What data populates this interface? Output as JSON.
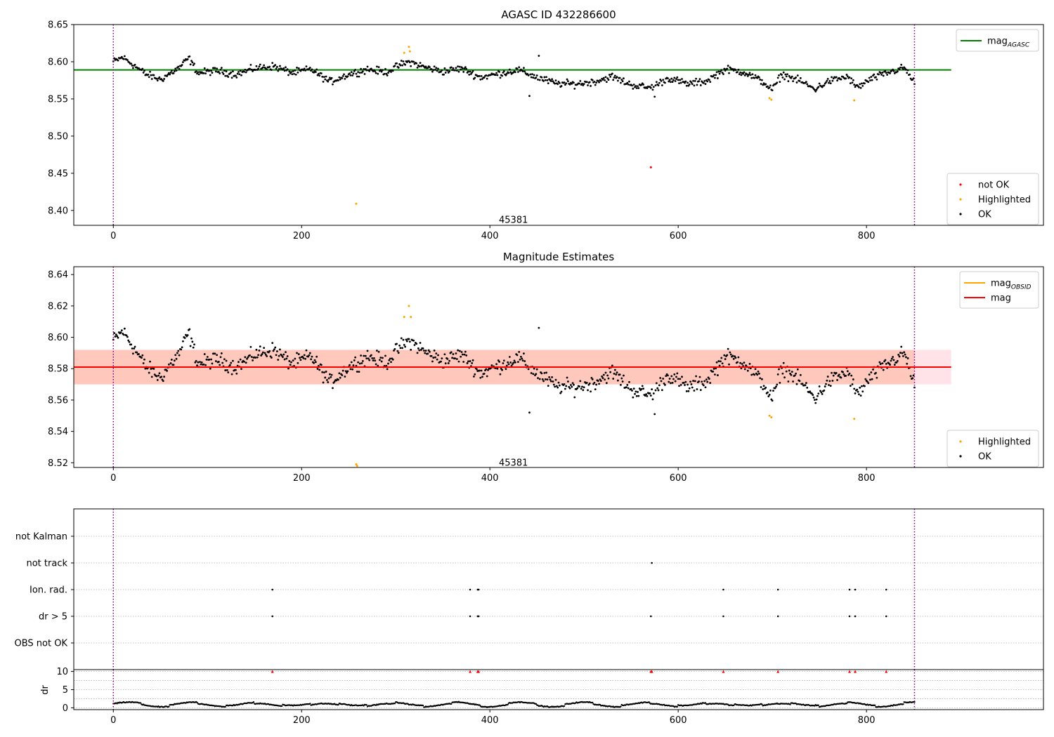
{
  "figure": {
    "background": "#ffffff"
  },
  "chart_data": [
    {
      "type": "scatter",
      "title": "AGASC ID 432286600",
      "xlim": [
        -42,
        988
      ],
      "ylim": [
        8.38,
        8.65
      ],
      "x_ticks": [
        0,
        200,
        400,
        600,
        800
      ],
      "x_tick_labels": [
        "0",
        "200",
        "400",
        "600",
        "800"
      ],
      "y_ticks": [
        8.4,
        8.45,
        8.5,
        8.55,
        8.6,
        8.65
      ],
      "y_tick_labels": [
        "8.40",
        "8.45",
        "8.50",
        "8.55",
        "8.60",
        "8.65"
      ],
      "grid": false,
      "obsid_boundaries": [
        0,
        851
      ],
      "obsid_label": {
        "text": "45381",
        "x": 425,
        "y": 8.387
      },
      "reference_lines": [
        {
          "name": "mag_AGASC",
          "y": 8.589,
          "x_range": [
            -42,
            890
          ],
          "color": "#008000"
        }
      ],
      "series": [
        {
          "name": "not OK",
          "color": "#ff0000",
          "points": [
            [
              571,
              8.458
            ]
          ]
        },
        {
          "name": "Highlighted",
          "color": "#ffa500",
          "points": [
            [
              258,
              8.409
            ],
            [
              309,
              8.612
            ],
            [
              314,
              8.62
            ],
            [
              315,
              8.614
            ],
            [
              697,
              8.551
            ],
            [
              699,
              8.549
            ],
            [
              787,
              8.548
            ]
          ]
        },
        {
          "name": "OK",
          "color": "#000000",
          "n_points": 851,
          "mean": 8.583,
          "segments": [
            [
              0,
              8.6
            ],
            [
              10,
              8.606
            ],
            [
              20,
              8.597
            ],
            [
              35,
              8.583
            ],
            [
              50,
              8.576
            ],
            [
              70,
              8.592
            ],
            [
              80,
              8.605
            ],
            [
              90,
              8.585
            ],
            [
              110,
              8.588
            ],
            [
              130,
              8.583
            ],
            [
              150,
              8.591
            ],
            [
              170,
              8.594
            ],
            [
              190,
              8.585
            ],
            [
              210,
              8.59
            ],
            [
              230,
              8.573
            ],
            [
              250,
              8.583
            ],
            [
              270,
              8.59
            ],
            [
              290,
              8.586
            ],
            [
              305,
              8.596
            ],
            [
              315,
              8.6
            ],
            [
              330,
              8.593
            ],
            [
              350,
              8.587
            ],
            [
              370,
              8.591
            ],
            [
              390,
              8.579
            ],
            [
              410,
              8.584
            ],
            [
              430,
              8.589
            ],
            [
              450,
              8.579
            ],
            [
              470,
              8.571
            ],
            [
              490,
              8.57
            ],
            [
              510,
              8.573
            ],
            [
              530,
              8.58
            ],
            [
              550,
              8.569
            ],
            [
              570,
              8.565
            ],
            [
              590,
              8.578
            ],
            [
              610,
              8.57
            ],
            [
              630,
              8.574
            ],
            [
              650,
              8.59
            ],
            [
              670,
              8.586
            ],
            [
              690,
              8.573
            ],
            [
              700,
              8.562
            ],
            [
              710,
              8.583
            ],
            [
              730,
              8.574
            ],
            [
              745,
              8.563
            ],
            [
              760,
              8.574
            ],
            [
              780,
              8.58
            ],
            [
              790,
              8.565
            ],
            [
              805,
              8.577
            ],
            [
              820,
              8.584
            ],
            [
              840,
              8.592
            ],
            [
              851,
              8.572
            ]
          ]
        }
      ],
      "legends": [
        {
          "location": "upper-right",
          "entries": [
            {
              "label": "mag",
              "subscript": "AGASC",
              "kind": "line",
              "color": "#008000"
            }
          ]
        },
        {
          "location": "lower-right",
          "entries": [
            {
              "label": "not OK",
              "kind": "marker",
              "color": "#ff0000"
            },
            {
              "label": "Highlighted",
              "kind": "marker",
              "color": "#ffa500"
            },
            {
              "label": "OK",
              "kind": "marker",
              "color": "#000000"
            }
          ]
        }
      ]
    },
    {
      "type": "scatter",
      "title": "Magnitude Estimates",
      "xlim": [
        -42,
        988
      ],
      "ylim": [
        8.517,
        8.645
      ],
      "x_ticks": [
        0,
        200,
        400,
        600,
        800
      ],
      "x_tick_labels": [
        "0",
        "200",
        "400",
        "600",
        "800"
      ],
      "y_ticks": [
        8.52,
        8.54,
        8.56,
        8.58,
        8.6,
        8.62,
        8.64
      ],
      "y_tick_labels": [
        "8.52",
        "8.54",
        "8.56",
        "8.58",
        "8.60",
        "8.62",
        "8.64"
      ],
      "grid": false,
      "obsid_boundaries": [
        0,
        851
      ],
      "obsid_label": {
        "text": "45381",
        "x": 425,
        "y": 8.52
      },
      "bands": [
        {
          "name": "mag range",
          "y_range": [
            8.57,
            8.592
          ],
          "x_range": [
            -42,
            890
          ],
          "color": "#ffc0cb",
          "opacity": 0.45
        },
        {
          "name": "mag_OBSID range",
          "y_range": [
            8.57,
            8.592
          ],
          "x_range": [
            -42,
            851
          ],
          "color": "#ffa07a",
          "opacity": 0.4
        }
      ],
      "reference_lines": [
        {
          "name": "mag_OBSID",
          "y": 8.581,
          "x_range": [
            -42,
            851
          ],
          "color": "#ffa500"
        },
        {
          "name": "mag",
          "y": 8.581,
          "x_range": [
            -42,
            890
          ],
          "color": "#ff0000"
        }
      ],
      "series": [
        {
          "name": "Highlighted",
          "color": "#ffa500",
          "points": [
            [
              258,
              8.519
            ],
            [
              259,
              8.518
            ],
            [
              309,
              8.613
            ],
            [
              314,
              8.62
            ],
            [
              316,
              8.613
            ],
            [
              697,
              8.55
            ],
            [
              699,
              8.549
            ],
            [
              787,
              8.548
            ]
          ]
        },
        {
          "name": "OK",
          "color": "#000000",
          "n_points": 851,
          "mean": 8.583
        }
      ],
      "legends": [
        {
          "location": "upper-right",
          "entries": [
            {
              "label": "mag",
              "subscript": "OBSID",
              "kind": "line",
              "color": "#ffa500"
            },
            {
              "label": "mag",
              "kind": "line",
              "color": "#ff0000"
            }
          ]
        },
        {
          "location": "lower-right",
          "entries": [
            {
              "label": "Highlighted",
              "kind": "marker",
              "color": "#ffa500"
            },
            {
              "label": "OK",
              "kind": "marker",
              "color": "#000000"
            }
          ]
        }
      ]
    },
    {
      "type": "scatter",
      "title": "",
      "xlim": [
        -42,
        988
      ],
      "y_categories": [
        "not Kalman",
        "not track",
        "Ion. rad.",
        "dr > 5",
        "OBS not OK"
      ],
      "grid": true,
      "obsid_boundaries": [
        0,
        851
      ],
      "flags": {
        "not Kalman": [],
        "not track": [
          572
        ],
        "Ion. rad.": [
          169,
          379,
          387,
          388,
          648,
          706,
          782,
          788,
          821
        ],
        "dr > 5": [
          169,
          379,
          387,
          388,
          571,
          648,
          706,
          782,
          788,
          821
        ],
        "OBS not OK": []
      }
    },
    {
      "type": "scatter",
      "title": "",
      "xlim": [
        -42,
        988
      ],
      "ylim": [
        -0.5,
        10.5
      ],
      "x_ticks": [
        0,
        200,
        400,
        600,
        800
      ],
      "x_tick_labels": [
        "0",
        "200",
        "400",
        "600",
        "800"
      ],
      "y_ticks": [
        0,
        5,
        10
      ],
      "y_tick_labels": [
        "0",
        "5",
        "10"
      ],
      "ylabel": "dr",
      "grid": true,
      "obsid_boundaries": [
        0,
        851
      ],
      "clipped_markers": {
        "y": 10,
        "color": "#ff0000",
        "x": [
          169,
          379,
          387,
          388,
          571,
          572,
          648,
          706,
          782,
          788,
          821
        ]
      },
      "series": [
        {
          "name": "dr",
          "color": "#000000",
          "n_points": 851,
          "mean": 0.9,
          "range": [
            0.2,
            1.8
          ]
        }
      ]
    }
  ]
}
